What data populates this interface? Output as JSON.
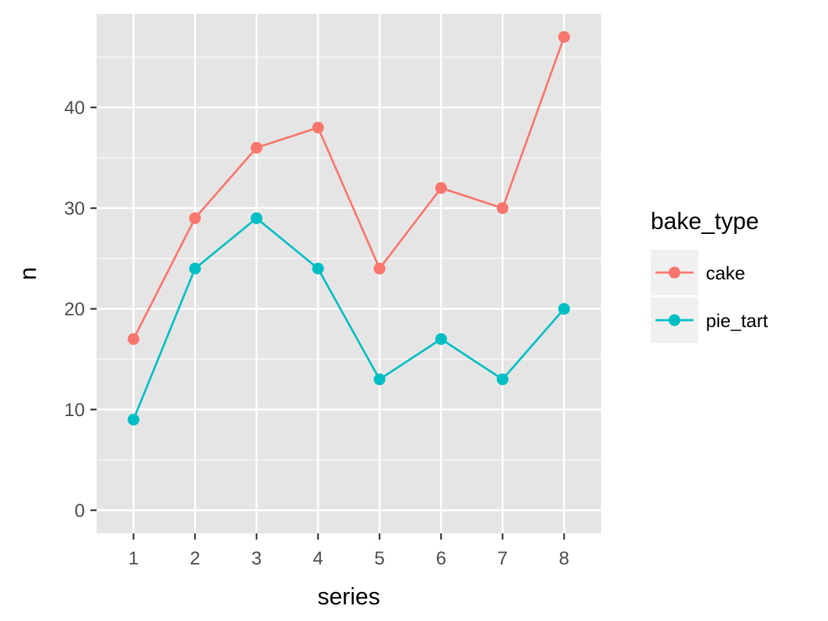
{
  "chart_data": {
    "type": "line",
    "x": [
      1,
      2,
      3,
      4,
      5,
      6,
      7,
      8
    ],
    "series": [
      {
        "name": "cake",
        "values": [
          17,
          29,
          36,
          38,
          24,
          32,
          30,
          47
        ],
        "color": "#F8766D"
      },
      {
        "name": "pie_tart",
        "values": [
          9,
          24,
          29,
          24,
          13,
          17,
          13,
          20
        ],
        "color": "#00BFC4"
      }
    ],
    "xlabel": "series",
    "ylabel": "n",
    "legend_title": "bake_type",
    "legend_position": "right",
    "xlim": [
      0.4,
      8.6
    ],
    "ylim": [
      -2.3,
      49.3
    ],
    "x_ticks": [
      1,
      2,
      3,
      4,
      5,
      6,
      7,
      8
    ],
    "y_ticks": [
      0,
      10,
      20,
      30,
      40
    ],
    "y_minor_ticks": [
      5,
      15,
      25,
      35,
      45
    ],
    "grid": true,
    "panel_background": "#E5E5E5"
  }
}
